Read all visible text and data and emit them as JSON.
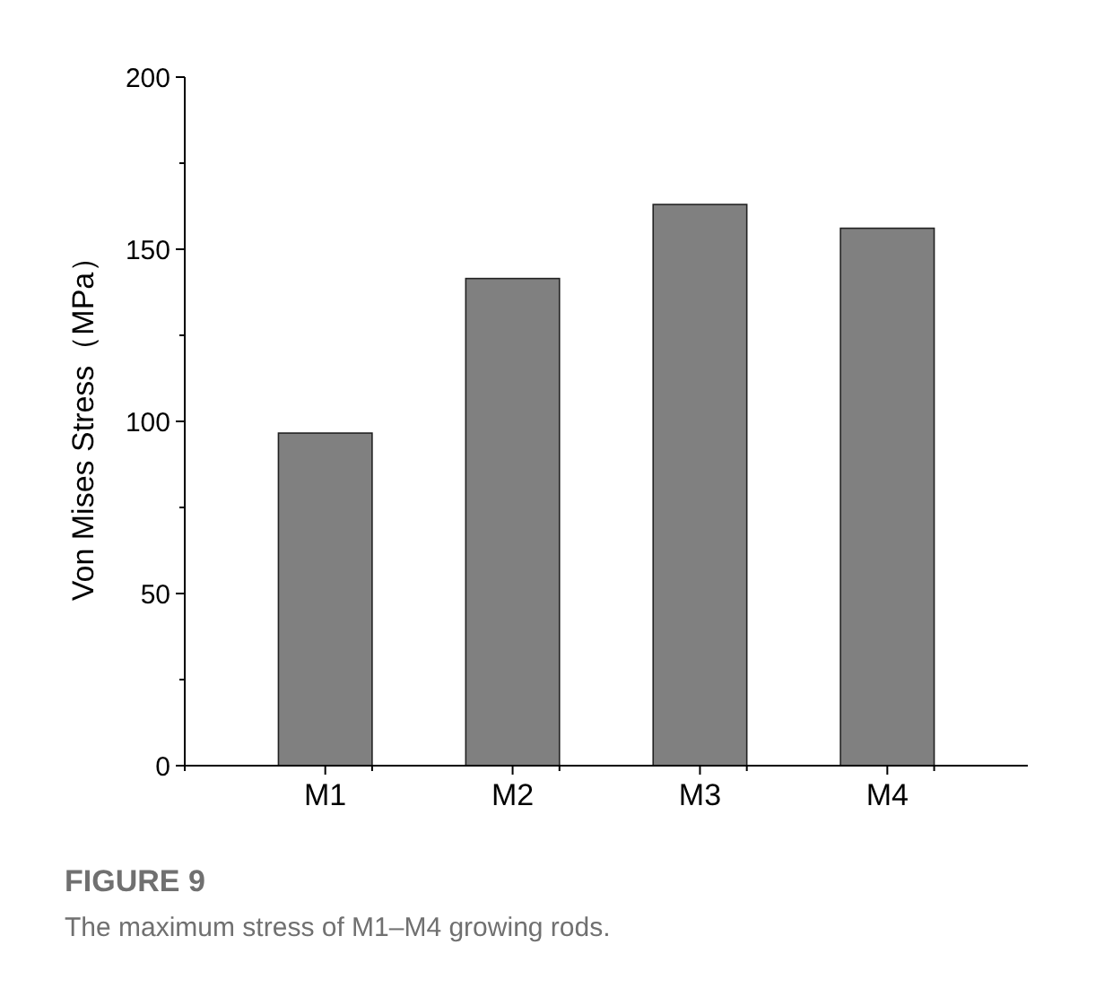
{
  "chart_data": {
    "type": "bar",
    "categories": [
      "M1",
      "M2",
      "M3",
      "M4"
    ],
    "values": [
      96.6,
      141.5,
      163,
      156.1
    ],
    "color": "#808080",
    "ylabel": "Von Mises Stress（MPa）",
    "ylim": [
      0,
      200
    ],
    "yticks": [
      0,
      {
        "value": 25,
        "label": null
      },
      50,
      {
        "value": 75,
        "label": null
      },
      100,
      {
        "value": 125,
        "label": null
      },
      150,
      {
        "value": 175,
        "label": null
      },
      200
    ],
    "grid": false,
    "annotations": [
      "FIGURE 9",
      "The maximum stress of M1–M4 growing rods."
    ]
  }
}
